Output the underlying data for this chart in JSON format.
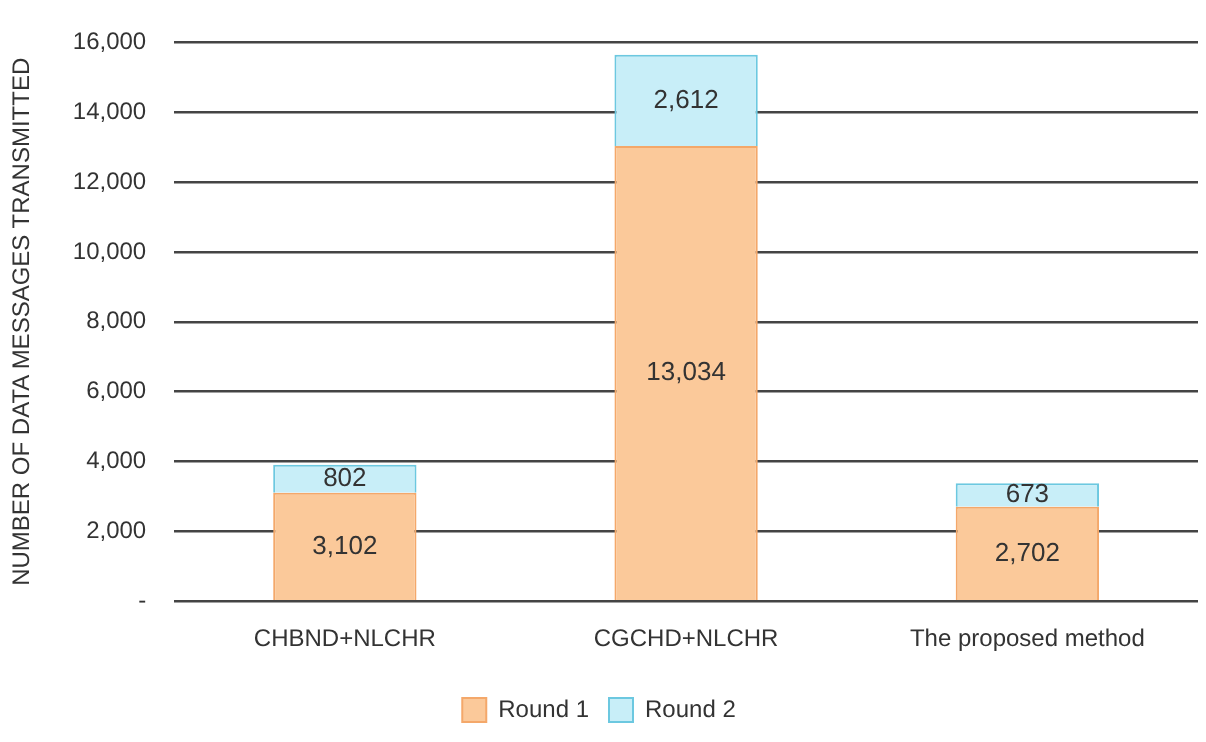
{
  "chart_data": {
    "type": "bar",
    "ylabel": "NUMBER OF DATA MESSAGES TRANSMITTED",
    "categories": [
      "CHBND+NLCHR",
      "CGCHD+NLCHR",
      "The proposed method"
    ],
    "series": [
      {
        "name": "Round 1",
        "color": "#fbc99a",
        "values": [
          3102,
          13034,
          2702
        ],
        "value_labels": [
          "3,102",
          "13,034",
          "2,702"
        ]
      },
      {
        "name": "Round 2",
        "color": "#c8eef8",
        "values": [
          802,
          2612,
          673
        ],
        "value_labels": [
          "802",
          "2,612",
          "673"
        ]
      }
    ],
    "stacked": true,
    "ylim": [
      0,
      16000
    ],
    "yticks": [
      {
        "value": 0,
        "label": "-"
      },
      {
        "value": 2000,
        "label": "2,000"
      },
      {
        "value": 4000,
        "label": "4,000"
      },
      {
        "value": 6000,
        "label": "6,000"
      },
      {
        "value": 8000,
        "label": "8,000"
      },
      {
        "value": 10000,
        "label": "10,000"
      },
      {
        "value": 12000,
        "label": "12,000"
      },
      {
        "value": 14000,
        "label": "14,000"
      },
      {
        "value": 16000,
        "label": "16,000"
      }
    ],
    "grid": "y",
    "legend": "bottom"
  }
}
